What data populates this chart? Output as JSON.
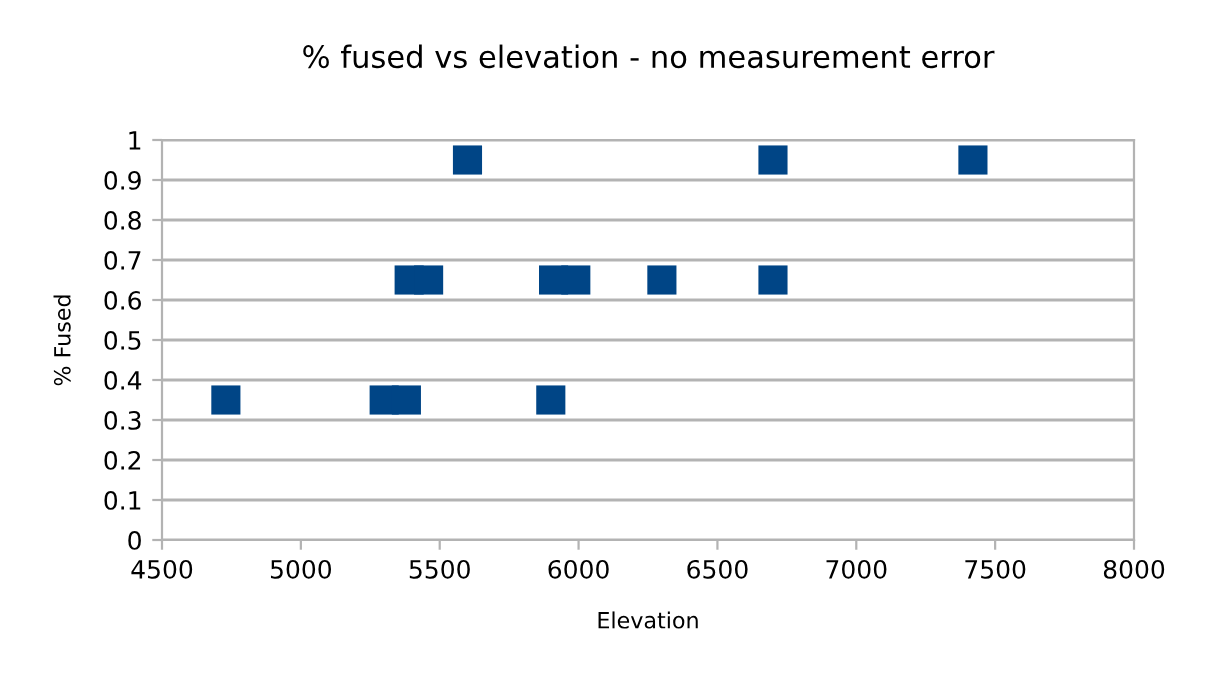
{
  "chart_data": {
    "type": "scatter",
    "title": "% fused vs elevation - no measurement error",
    "xlabel": "Elevation",
    "ylabel": "% Fused",
    "x": [
      4730,
      5300,
      5380,
      5900,
      5390,
      5460,
      5910,
      5990,
      6300,
      6700,
      5600,
      6700,
      7420
    ],
    "values": [
      0.35,
      0.35,
      0.35,
      0.35,
      0.65,
      0.65,
      0.65,
      0.65,
      0.65,
      0.65,
      0.95,
      0.95,
      0.95
    ],
    "color": "#004586",
    "marker": "square",
    "grid": "y",
    "legend": false,
    "xlim": [
      4500,
      8000
    ],
    "xticks": [
      4500,
      5000,
      5500,
      6000,
      6500,
      7000,
      7500,
      8000
    ],
    "ylim": [
      0,
      1
    ],
    "yticks": [
      0,
      0.1,
      0.2,
      0.3,
      0.4,
      0.5,
      0.6,
      0.7,
      0.8,
      0.9,
      1
    ]
  }
}
